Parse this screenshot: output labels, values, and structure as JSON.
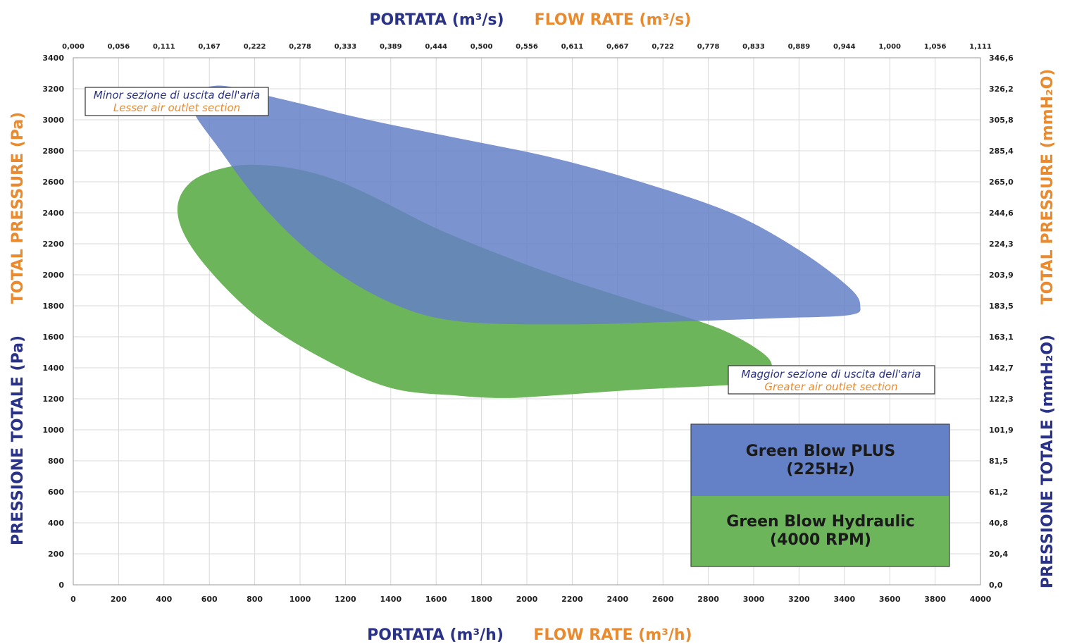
{
  "chart_data": {
    "type": "area",
    "x_top_title_it": "PORTATA (m³/s)",
    "x_top_title_en": "FLOW RATE (m³/s)",
    "x_bottom_title_it": "PORTATA (m³/h)",
    "x_bottom_title_en": "FLOW RATE (m³/h)",
    "y_left_title_en": "TOTAL PRESSURE (Pa)",
    "y_left_title_it": "PRESSIONE TOTALE (Pa)",
    "y_right_title_en": "TOTAL PRESSURE (mmH₂O)",
    "y_right_title_it": "PRESSIONE TOTALE (mmH₂O)",
    "xlim": [
      0,
      4000
    ],
    "ylim": [
      0,
      3400
    ],
    "grid": true,
    "x_ticks": [
      "0",
      "200",
      "400",
      "600",
      "800",
      "1000",
      "1200",
      "1400",
      "1600",
      "1800",
      "2000",
      "2200",
      "2400",
      "2600",
      "2800",
      "3000",
      "3200",
      "3400",
      "3600",
      "3800",
      "4000"
    ],
    "x_top_ticks": [
      "0,000",
      "0,056",
      "0,111",
      "0,167",
      "0,222",
      "0,278",
      "0,333",
      "0,389",
      "0,444",
      "0,500",
      "0,556",
      "0,611",
      "0,667",
      "0,722",
      "0,778",
      "0,833",
      "0,889",
      "0,944",
      "1,000",
      "1,056",
      "1,111"
    ],
    "y_ticks": [
      "0",
      "200",
      "400",
      "600",
      "800",
      "1000",
      "1200",
      "1400",
      "1600",
      "1800",
      "2000",
      "2200",
      "2400",
      "2600",
      "2800",
      "3000",
      "3200",
      "3400"
    ],
    "y_right_ticks": [
      "0,0",
      "20,4",
      "40,8",
      "61,2",
      "81,5",
      "101,9",
      "122,3",
      "142,7",
      "163,1",
      "183,5",
      "203,9",
      "224,3",
      "244,6",
      "265,0",
      "285,4",
      "305,8",
      "326,2",
      "346,6"
    ],
    "series": [
      {
        "name": "Green Blow Hydraulic (4000 RPM)",
        "color": "#6db55a",
        "outline": [
          [
            700,
            2700
          ],
          [
            900,
            2700
          ],
          [
            1100,
            2640
          ],
          [
            1300,
            2520
          ],
          [
            1600,
            2300
          ],
          [
            1900,
            2120
          ],
          [
            2200,
            1960
          ],
          [
            2500,
            1820
          ],
          [
            2800,
            1680
          ],
          [
            2950,
            1580
          ],
          [
            3060,
            1470
          ],
          [
            3080,
            1390
          ],
          [
            3050,
            1320
          ],
          [
            2900,
            1290
          ],
          [
            2500,
            1260
          ],
          [
            2100,
            1220
          ],
          [
            1900,
            1205
          ],
          [
            1700,
            1220
          ],
          [
            1400,
            1270
          ],
          [
            1100,
            1460
          ],
          [
            800,
            1740
          ],
          [
            550,
            2120
          ],
          [
            460,
            2400
          ],
          [
            520,
            2600
          ]
        ]
      },
      {
        "name": "Green Blow PLUS (225Hz)",
        "color": "#6480c6",
        "outline": [
          [
            630,
            3220
          ],
          [
            900,
            3140
          ],
          [
            1300,
            3000
          ],
          [
            1700,
            2880
          ],
          [
            2100,
            2760
          ],
          [
            2500,
            2600
          ],
          [
            2900,
            2400
          ],
          [
            3200,
            2160
          ],
          [
            3420,
            1920
          ],
          [
            3470,
            1800
          ],
          [
            3420,
            1740
          ],
          [
            3100,
            1720
          ],
          [
            2700,
            1700
          ],
          [
            2200,
            1680
          ],
          [
            1700,
            1700
          ],
          [
            1400,
            1820
          ],
          [
            1100,
            2080
          ],
          [
            850,
            2420
          ],
          [
            650,
            2800
          ],
          [
            520,
            3100
          ]
        ]
      }
    ],
    "annotations": [
      {
        "it": "Minor sezione di uscita dell'aria",
        "en": "Lesser air outlet section"
      },
      {
        "it": "Maggior sezione di uscita dell'aria",
        "en": "Greater air outlet section"
      }
    ],
    "legend": [
      {
        "line1": "Green Blow PLUS",
        "line2": "(225Hz)",
        "color": "#6480c6"
      },
      {
        "line1": "Green Blow Hydraulic",
        "line2": "(4000 RPM)",
        "color": "#6db55a"
      }
    ],
    "legend_position": "bottom-right"
  }
}
